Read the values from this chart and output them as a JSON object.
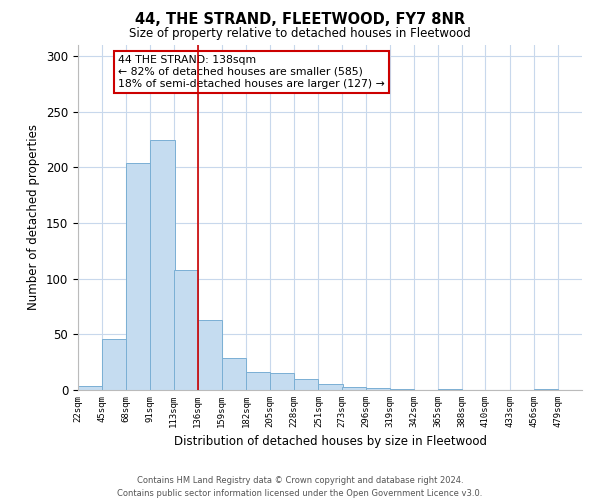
{
  "title": "44, THE STRAND, FLEETWOOD, FY7 8NR",
  "subtitle": "Size of property relative to detached houses in Fleetwood",
  "xlabel": "Distribution of detached houses by size in Fleetwood",
  "ylabel": "Number of detached properties",
  "bar_color": "#c5dcf0",
  "bar_edge_color": "#7aafd4",
  "bins": [
    22,
    45,
    68,
    91,
    113,
    136,
    159,
    182,
    205,
    228,
    251,
    273,
    296,
    319,
    342,
    365,
    388,
    410,
    433,
    456,
    479
  ],
  "values": [
    4,
    46,
    204,
    225,
    108,
    63,
    29,
    16,
    15,
    10,
    5,
    3,
    2,
    1,
    0,
    1,
    0,
    0,
    0,
    1
  ],
  "tick_labels": [
    "22sqm",
    "45sqm",
    "68sqm",
    "91sqm",
    "113sqm",
    "136sqm",
    "159sqm",
    "182sqm",
    "205sqm",
    "228sqm",
    "251sqm",
    "273sqm",
    "296sqm",
    "319sqm",
    "342sqm",
    "365sqm",
    "388sqm",
    "410sqm",
    "433sqm",
    "456sqm",
    "479sqm"
  ],
  "ylim": [
    0,
    310
  ],
  "yticks": [
    0,
    50,
    100,
    150,
    200,
    250,
    300
  ],
  "vline_x": 136,
  "vline_color": "#cc0000",
  "annotation_title": "44 THE STRAND: 138sqm",
  "annotation_line1": "← 82% of detached houses are smaller (585)",
  "annotation_line2": "18% of semi-detached houses are larger (127) →",
  "annotation_box_color": "#ffffff",
  "annotation_box_edge": "#cc0000",
  "footer_line1": "Contains HM Land Registry data © Crown copyright and database right 2024.",
  "footer_line2": "Contains public sector information licensed under the Open Government Licence v3.0.",
  "background_color": "#ffffff",
  "grid_color": "#c8d8ec"
}
